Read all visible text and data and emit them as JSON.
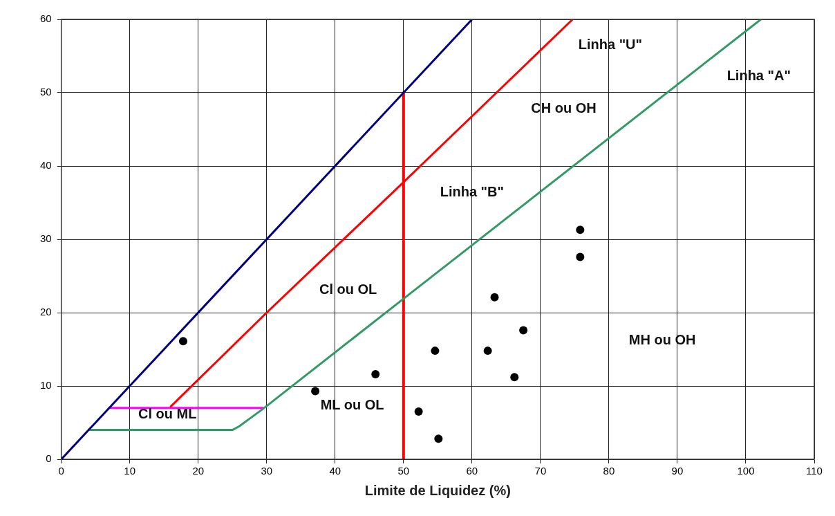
{
  "chart_data": {
    "type": "scatter",
    "xlabel": "Limite de Liquidez (%)",
    "xlim": [
      0,
      110
    ],
    "xticks": [
      0,
      10,
      20,
      30,
      40,
      50,
      60,
      70,
      80,
      90,
      100,
      110
    ],
    "ylim": [
      0,
      60
    ],
    "yticks": [
      0,
      10,
      20,
      30,
      40,
      50,
      60
    ],
    "grid": true,
    "legend": false,
    "marker": "circle",
    "series": [
      {
        "type": "line",
        "marker": "none",
        "color": "#000080",
        "x": [
          0,
          4,
          5,
          7,
          60
        ],
        "values": [
          0,
          4,
          5,
          7,
          60
        ]
      },
      {
        "type": "line",
        "marker": "none",
        "color": "#ff0000",
        "x": [
          16,
          30,
          50,
          74.7
        ],
        "values": [
          7.2,
          20,
          37.8,
          60
        ]
      },
      {
        "type": "line",
        "marker": "none",
        "color": "#339966",
        "x": [
          4,
          25,
          26,
          29.5,
          50,
          102.2
        ],
        "values": [
          4,
          4,
          4.5,
          6.9,
          21.9,
          60
        ]
      },
      {
        "type": "line",
        "marker": "none",
        "color": "#ff00ff",
        "x": [
          7,
          29.5
        ],
        "values": [
          7,
          7
        ]
      },
      {
        "type": "line",
        "marker": "none",
        "color": "#ff0000",
        "x": [
          50,
          50
        ],
        "values": [
          0,
          50
        ]
      },
      {
        "type": "scatter",
        "color": "#000000",
        "x": [
          17.8,
          37.1,
          45.9,
          52.2,
          55.1,
          54.6,
          63.3,
          62.3,
          66.2,
          67.5,
          75.8,
          75.8
        ],
        "values": [
          16.1,
          9.3,
          11.6,
          6.5,
          2.8,
          14.8,
          22.1,
          14.8,
          11.2,
          17.6,
          31.3,
          27.6
        ]
      }
    ],
    "annotations": [
      "Linha \"U\"",
      "Linha \"A\"",
      "CH ou OH",
      "Linha \"B\"",
      "Cl ou OL",
      "Cl ou ML",
      "ML ou OL",
      "MH ou OH"
    ]
  }
}
